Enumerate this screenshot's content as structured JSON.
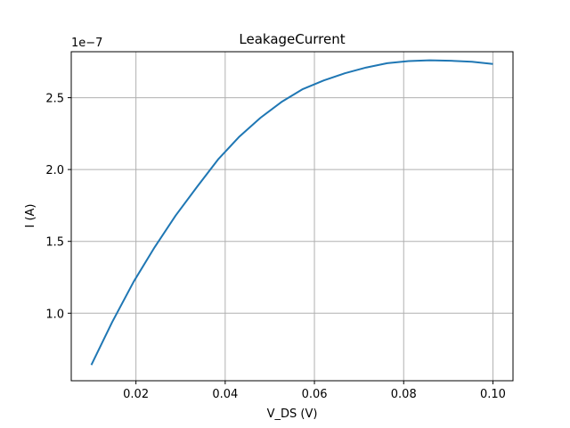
{
  "chart_data": {
    "type": "line",
    "title": "LeakageCurrent",
    "xlabel": "V_DS (V)",
    "ylabel": "I (A)",
    "y_offset_label": "1e−7",
    "xlim": [
      0.0055,
      0.1045
    ],
    "ylim": [
      5.3e-08,
      2.82e-07
    ],
    "xticks": [
      0.02,
      0.04,
      0.06,
      0.08,
      0.1
    ],
    "xtick_labels": [
      "0.02",
      "0.04",
      "0.06",
      "0.08",
      "0.10"
    ],
    "yticks": [
      1e-07,
      1.5e-07,
      2e-07,
      2.5e-07
    ],
    "ytick_labels": [
      "1.0",
      "1.5",
      "2.0",
      "2.5"
    ],
    "grid": true,
    "series": [
      {
        "color": "#1f77b4",
        "x": [
          0.01,
          0.0147,
          0.0195,
          0.0242,
          0.0289,
          0.0337,
          0.0384,
          0.0432,
          0.0479,
          0.0526,
          0.0574,
          0.0621,
          0.0668,
          0.0716,
          0.0763,
          0.0811,
          0.0858,
          0.0905,
          0.0953,
          0.1
        ],
        "values": [
          6.4e-08,
          9.4e-08,
          1.22e-07,
          1.46e-07,
          1.68e-07,
          1.88e-07,
          2.07e-07,
          2.23e-07,
          2.36e-07,
          2.47e-07,
          2.56e-07,
          2.62e-07,
          2.67e-07,
          2.71e-07,
          2.74e-07,
          2.755e-07,
          2.76e-07,
          2.757e-07,
          2.75e-07,
          2.735e-07
        ]
      }
    ]
  }
}
